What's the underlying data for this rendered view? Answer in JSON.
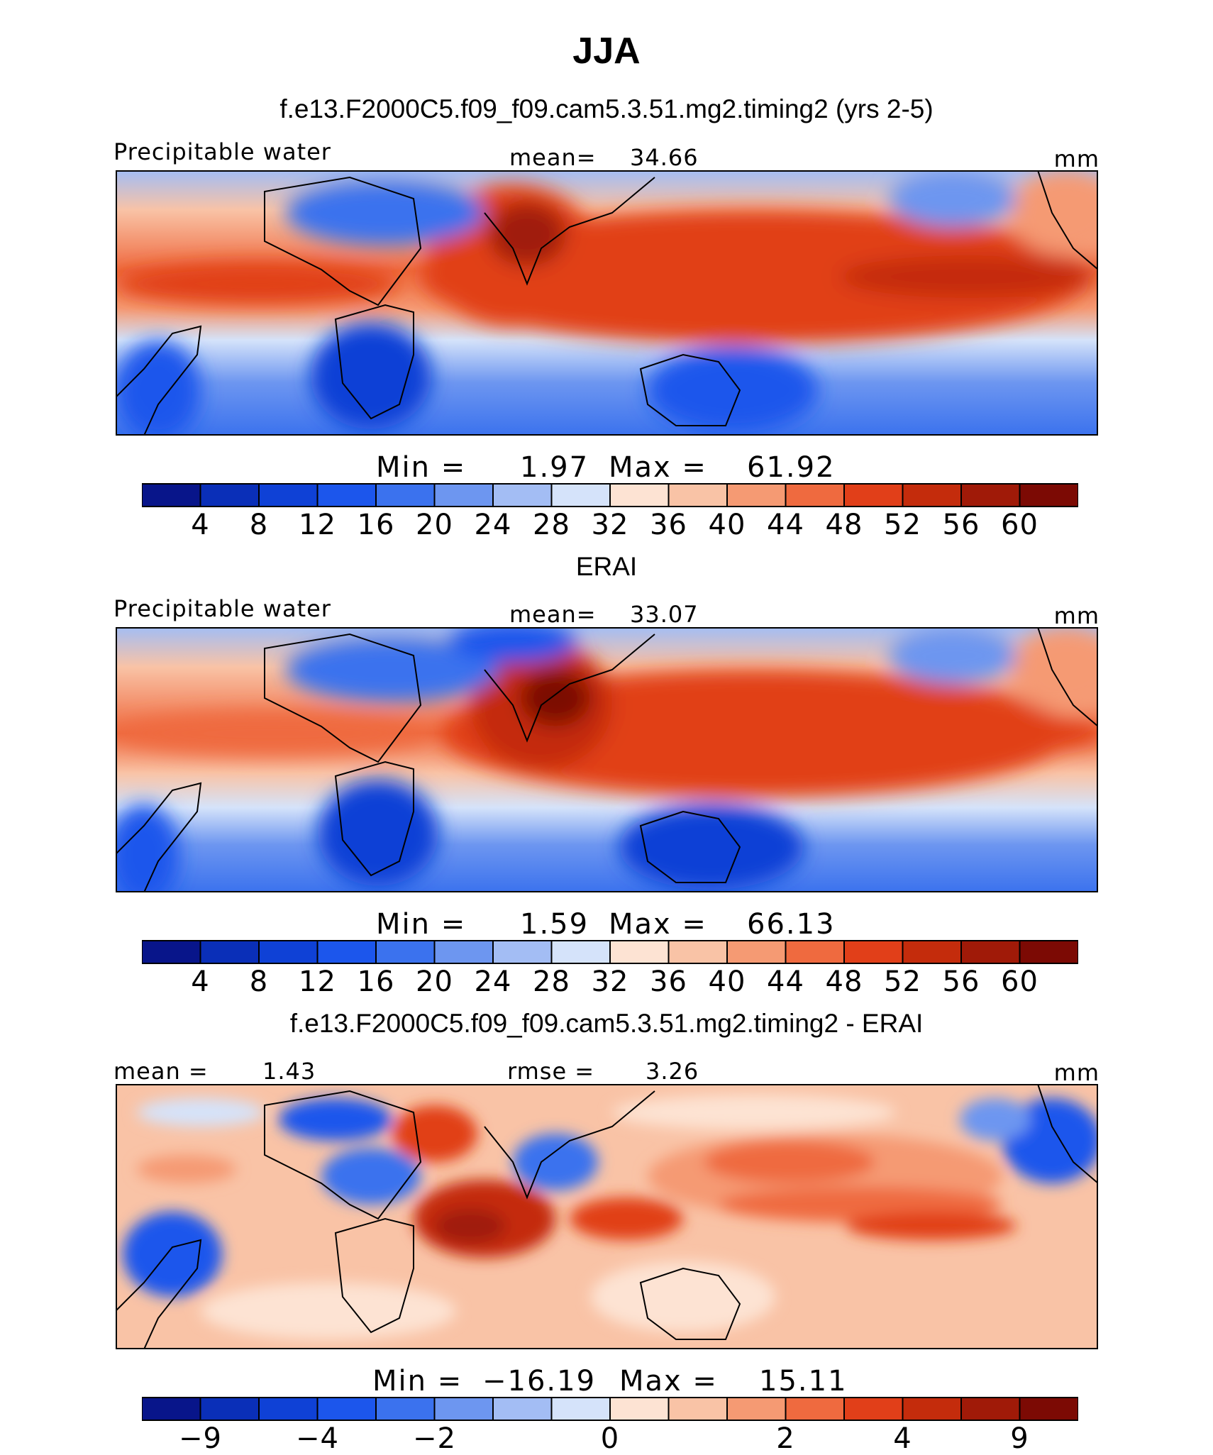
{
  "figure": {
    "title": "JJA"
  },
  "chart_data": [
    {
      "type": "heatmap",
      "title": "f.e13.F2000C5.f09_f09.cam5.3.51.mg2.timing2 (yrs 2-5)",
      "variable": "Precipitable water",
      "mean_label": "mean=",
      "mean": "34.66",
      "units": "mm",
      "min_label": "Min  =",
      "min": "1.97",
      "max_label": "Max  =",
      "max": "61.92",
      "colorbar_ticks": [
        "4",
        "8",
        "12",
        "16",
        "20",
        "24",
        "28",
        "32",
        "36",
        "40",
        "44",
        "48",
        "52",
        "56",
        "60"
      ],
      "colorbar_colors": [
        "#08158a",
        "#0a2fb8",
        "#0f41d6",
        "#1c56ec",
        "#3b72ee",
        "#6d96f0",
        "#a3bdf4",
        "#d5e3fa",
        "#fde3d3",
        "#f9c3a6",
        "#f59a73",
        "#ef6a3f",
        "#e13f19",
        "#c42c0c",
        "#a01a08",
        "#7c0a04"
      ]
    },
    {
      "type": "heatmap",
      "title": "ERAI",
      "variable": "Precipitable water",
      "mean_label": "mean=",
      "mean": "33.07",
      "units": "mm",
      "min_label": "Min  =",
      "min": "1.59",
      "max_label": "Max  =",
      "max": "66.13",
      "colorbar_ticks": [
        "4",
        "8",
        "12",
        "16",
        "20",
        "24",
        "28",
        "32",
        "36",
        "40",
        "44",
        "48",
        "52",
        "56",
        "60"
      ],
      "colorbar_colors": [
        "#08158a",
        "#0a2fb8",
        "#0f41d6",
        "#1c56ec",
        "#3b72ee",
        "#6d96f0",
        "#a3bdf4",
        "#d5e3fa",
        "#fde3d3",
        "#f9c3a6",
        "#f59a73",
        "#ef6a3f",
        "#e13f19",
        "#c42c0c",
        "#a01a08",
        "#7c0a04"
      ]
    },
    {
      "type": "heatmap",
      "title": "f.e13.F2000C5.f09_f09.cam5.3.51.mg2.timing2 - ERAI",
      "mean_label": "mean =",
      "mean": "1.43",
      "rmse_label": "rmse =",
      "rmse": "3.26",
      "units": "mm",
      "min_label": "Min  =",
      "min": "−16.19",
      "max_label": "Max  =",
      "max": "15.11",
      "colorbar_ticks": [
        "−9",
        "−4",
        "−2",
        "0",
        "2",
        "4",
        "9"
      ],
      "colorbar_colors": [
        "#08158a",
        "#0a2fb8",
        "#0f41d6",
        "#1c56ec",
        "#3b72ee",
        "#6d96f0",
        "#a3bdf4",
        "#d5e3fa",
        "#fde3d3",
        "#f9c3a6",
        "#f59a73",
        "#ef6a3f",
        "#e13f19",
        "#c42c0c",
        "#a01a08",
        "#7c0a04"
      ]
    }
  ]
}
